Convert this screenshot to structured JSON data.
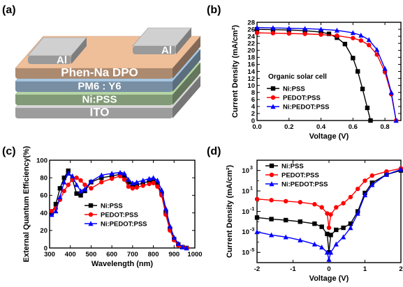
{
  "panels": {
    "a": {
      "label": "(a)",
      "layers": [
        {
          "name": "ITO",
          "color": "#d8d8d8"
        },
        {
          "name": "Ni:PSS",
          "color": "#b5d6a5"
        },
        {
          "name": "PM6 : Y6",
          "color": "#a7c7e3"
        },
        {
          "name": "Phen-Na DPO",
          "color": "#efbf9a"
        }
      ],
      "electrode_label": "Al",
      "electrode_color": "#b8b8b8"
    },
    "b": {
      "label": "(b)",
      "annotation": "Organic solar cell"
    },
    "c": {
      "label": "(c)"
    },
    "d": {
      "label": "(d)"
    }
  },
  "chart_data": [
    {
      "panel": "(b)",
      "type": "line",
      "xlabel": "Voltage (V)",
      "ylabel": "Current Density (mA/cm²)",
      "xlim": [
        0.0,
        0.9
      ],
      "ylim": [
        0,
        28
      ],
      "xticks": [
        "0.0",
        "0.2",
        "0.4",
        "0.6",
        "0.8"
      ],
      "yticks": [
        "0",
        "2",
        "4",
        "6",
        "8",
        "10",
        "12",
        "14",
        "16",
        "18",
        "20",
        "22",
        "24",
        "26",
        "28"
      ],
      "legend_position": "bottom-left",
      "series": [
        {
          "name": "Ni:PSS",
          "color": "#000000",
          "marker": "square",
          "x": [
            0.0,
            0.1,
            0.2,
            0.3,
            0.4,
            0.45,
            0.5,
            0.55,
            0.6,
            0.63,
            0.66,
            0.69,
            0.71
          ],
          "y": [
            26.0,
            25.9,
            25.8,
            25.6,
            25.2,
            24.7,
            23.6,
            21.8,
            17.8,
            14.0,
            9.0,
            3.6,
            0.0
          ]
        },
        {
          "name": "PEDOT:PSS",
          "color": "#ff0000",
          "marker": "circle",
          "x": [
            0.0,
            0.1,
            0.2,
            0.3,
            0.4,
            0.5,
            0.6,
            0.65,
            0.7,
            0.75,
            0.8,
            0.84,
            0.87
          ],
          "y": [
            25.0,
            24.9,
            24.8,
            24.7,
            24.5,
            24.2,
            23.5,
            22.8,
            21.5,
            18.8,
            13.8,
            7.5,
            0.0
          ]
        },
        {
          "name": "Ni:PEDOT:PSS",
          "color": "#0000ff",
          "marker": "triangle",
          "x": [
            0.0,
            0.1,
            0.2,
            0.3,
            0.4,
            0.5,
            0.6,
            0.65,
            0.7,
            0.75,
            0.8,
            0.84,
            0.87
          ],
          "y": [
            26.5,
            26.4,
            26.3,
            26.2,
            26.0,
            25.7,
            25.0,
            24.3,
            23.0,
            20.2,
            14.8,
            8.0,
            0.0
          ]
        }
      ]
    },
    {
      "panel": "(c)",
      "type": "line",
      "xlabel": "Wavelength (nm)",
      "ylabel": "External Quantum Efficiency(%)",
      "xlim": [
        300,
        1000
      ],
      "ylim": [
        0,
        100
      ],
      "xticks": [
        "300",
        "400",
        "500",
        "600",
        "700",
        "800",
        "900",
        "1000"
      ],
      "yticks": [
        "0",
        "20",
        "40",
        "60",
        "80",
        "100"
      ],
      "legend_position": "bottom-center",
      "series": [
        {
          "name": "Ni:PSS",
          "color": "#000000",
          "marker": "square",
          "x": [
            310,
            330,
            350,
            370,
            390,
            410,
            430,
            450,
            470,
            500,
            550,
            600,
            640,
            660,
            680,
            700,
            720,
            750,
            780,
            800,
            820,
            840,
            860,
            880,
            900,
            920,
            940,
            960
          ],
          "y": [
            40,
            50,
            68,
            80,
            88,
            78,
            62,
            60,
            65,
            75,
            80,
            82,
            84,
            82,
            75,
            72,
            72,
            74,
            76,
            77,
            73,
            62,
            40,
            22,
            10,
            4,
            1,
            0
          ]
        },
        {
          "name": "PEDOT:PSS",
          "color": "#ff0000",
          "marker": "circle",
          "x": [
            310,
            330,
            350,
            370,
            390,
            410,
            430,
            450,
            470,
            500,
            550,
            600,
            640,
            660,
            680,
            700,
            720,
            750,
            780,
            800,
            820,
            840,
            860,
            880,
            900,
            920,
            940,
            960
          ],
          "y": [
            42,
            45,
            55,
            65,
            72,
            78,
            80,
            77,
            72,
            68,
            75,
            79,
            82,
            78,
            70,
            68,
            69,
            71,
            73,
            74,
            70,
            60,
            38,
            20,
            9,
            3,
            1,
            0
          ]
        },
        {
          "name": "Ni:PEDOT:PSS",
          "color": "#0000ff",
          "marker": "triangle",
          "x": [
            310,
            330,
            350,
            370,
            390,
            410,
            430,
            450,
            470,
            500,
            550,
            600,
            640,
            660,
            680,
            700,
            720,
            750,
            780,
            800,
            820,
            840,
            860,
            880,
            900,
            920,
            940,
            960
          ],
          "y": [
            38,
            42,
            58,
            75,
            85,
            82,
            72,
            65,
            67,
            76,
            83,
            85,
            86,
            85,
            78,
            74,
            75,
            77,
            79,
            80,
            77,
            66,
            45,
            25,
            12,
            5,
            1,
            0
          ]
        }
      ]
    },
    {
      "panel": "(d)",
      "type": "line",
      "xlabel": "Voltage (V)",
      "ylabel": "Current Density (mA/cm²)",
      "xlim": [
        -2,
        2
      ],
      "ylog": true,
      "ylim_exp": [
        -6,
        4
      ],
      "xticks": [
        "-2",
        "-1",
        "0",
        "1",
        "2"
      ],
      "yticks_exp": [
        -5,
        -3,
        -1,
        1,
        3
      ],
      "legend_position": "top-left",
      "series": [
        {
          "name": "Ni:PSS",
          "color": "#000000",
          "marker": "square",
          "x": [
            -2.0,
            -1.6,
            -1.2,
            -0.8,
            -0.4,
            -0.2,
            -0.05,
            0.0,
            0.05,
            0.2,
            0.4,
            0.6,
            0.8,
            1.0,
            1.2,
            1.6,
            2.0
          ],
          "y": [
            -1.6,
            -1.75,
            -1.85,
            -2.0,
            -2.2,
            -2.5,
            -3.2,
            -5.0,
            -3.3,
            -2.8,
            -2.6,
            -2.2,
            -1.0,
            0.8,
            1.8,
            2.6,
            3.0
          ]
        },
        {
          "name": "PEDOT:PSS",
          "color": "#ff0000",
          "marker": "circle",
          "x": [
            -2.0,
            -1.6,
            -1.2,
            -0.8,
            -0.4,
            -0.2,
            -0.05,
            0.0,
            0.05,
            0.2,
            0.4,
            0.6,
            0.8,
            1.0,
            1.2,
            1.6,
            2.0
          ],
          "y": [
            0.2,
            0.1,
            0.0,
            -0.1,
            -0.3,
            -0.6,
            -1.2,
            -2.6,
            -1.3,
            -0.6,
            -0.2,
            0.4,
            1.2,
            2.0,
            2.5,
            2.9,
            3.2
          ]
        },
        {
          "name": "Ni:PEDOT:PSS",
          "color": "#0000ff",
          "marker": "triangle",
          "x": [
            -2.0,
            -1.6,
            -1.2,
            -0.8,
            -0.4,
            -0.2,
            -0.05,
            0.0,
            0.05,
            0.2,
            0.4,
            0.6,
            0.8,
            1.0,
            1.2,
            1.6,
            2.0
          ],
          "y": [
            -3.0,
            -3.3,
            -3.5,
            -3.8,
            -4.2,
            -4.5,
            -5.0,
            -5.7,
            -5.0,
            -4.2,
            -3.5,
            -2.6,
            -1.2,
            0.6,
            1.6,
            2.6,
            3.1
          ]
        }
      ]
    }
  ]
}
